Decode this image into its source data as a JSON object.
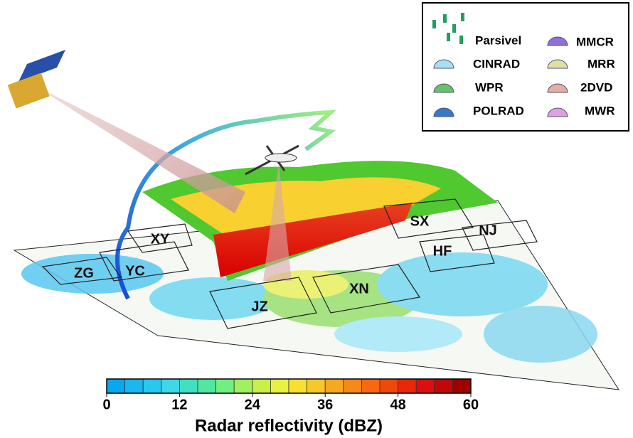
{
  "legend": {
    "items": [
      "Parsivel",
      "MMCR",
      "CINRAD",
      "MRR",
      "WPR",
      "2DVD",
      "POLRAD",
      "MWR"
    ]
  },
  "sites": [
    "ZG",
    "YC",
    "XY",
    "JZ",
    "XN",
    "HF",
    "SX",
    "NJ"
  ],
  "colorbar": {
    "title": "Radar reflectivity (dBZ)",
    "range": [
      0,
      60
    ],
    "ticks": [
      0,
      12,
      24,
      36,
      48,
      60
    ],
    "colors": [
      "#08a8f0",
      "#18b8f0",
      "#28c8f0",
      "#40d8e8",
      "#40e0c0",
      "#50e8a0",
      "#70f080",
      "#a0f060",
      "#c8f048",
      "#e8f040",
      "#f8e030",
      "#f8c828",
      "#f8a820",
      "#f88818",
      "#f86810",
      "#f04808",
      "#e82808",
      "#d81010",
      "#c00808",
      "#a00000"
    ]
  }
}
